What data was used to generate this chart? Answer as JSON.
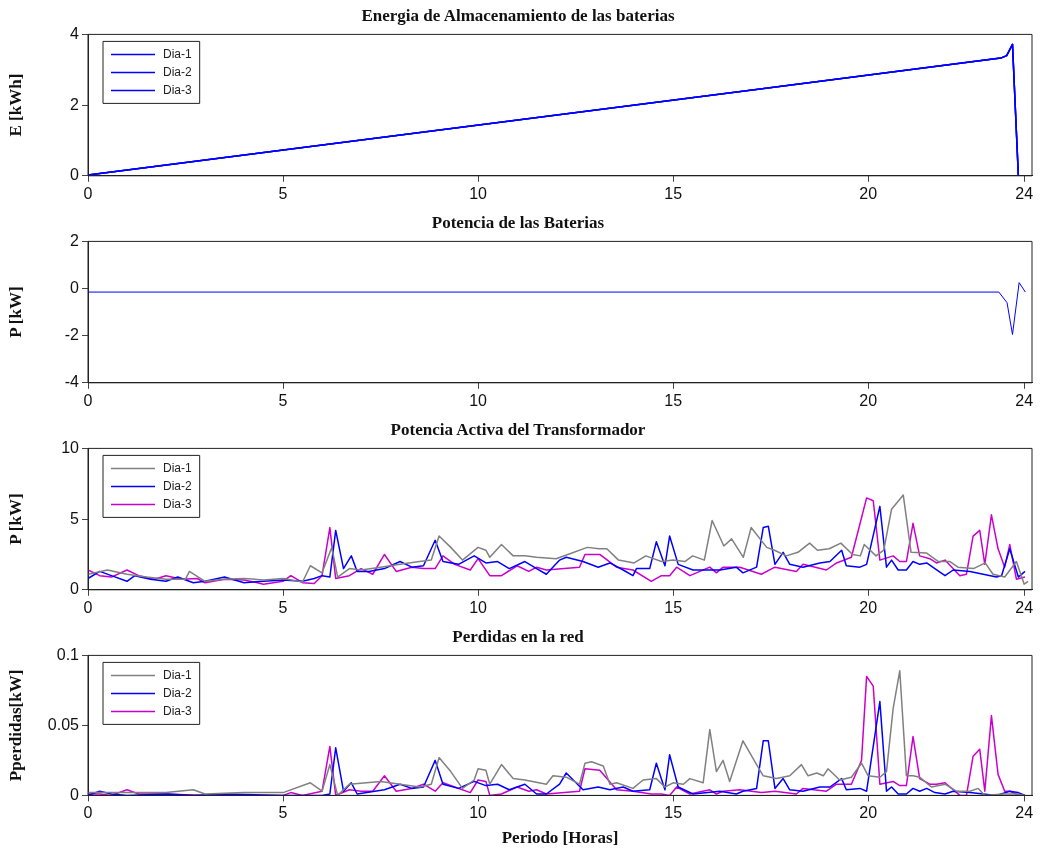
{
  "chart_data": [
    {
      "type": "line",
      "title": "Energia de Almacenamiento de las baterias",
      "ylabel": "E [kWh]",
      "xlim": [
        0,
        24.2
      ],
      "xticks": [
        0,
        5,
        10,
        15,
        20,
        24
      ],
      "ylim": [
        0,
        4
      ],
      "yticks": [
        0,
        2,
        4
      ],
      "legend": "top left",
      "series": [
        {
          "name": "Dia-1",
          "color": "#0000ff",
          "x": [
            0,
            23.4,
            23.55,
            23.7,
            23.85
          ],
          "values": [
            0.02,
            3.33,
            3.4,
            3.72,
            0
          ]
        },
        {
          "name": "Dia-2",
          "color": "#0000ff",
          "x": [
            0,
            23.4,
            23.55,
            23.7,
            23.85
          ],
          "values": [
            0.02,
            3.33,
            3.4,
            3.72,
            0
          ]
        },
        {
          "name": "Dia-3",
          "color": "#0000ff",
          "x": [
            0,
            23.4,
            23.55,
            23.7,
            23.85
          ],
          "values": [
            0.02,
            3.33,
            3.4,
            3.72,
            0
          ]
        }
      ]
    },
    {
      "type": "line",
      "title": "Potencia de las Baterias",
      "ylabel": "P [kW]",
      "xlim": [
        0,
        24.2
      ],
      "xticks": [
        0,
        5,
        10,
        15,
        20,
        24
      ],
      "ylim": [
        -4,
        2
      ],
      "yticks": [
        -4,
        -2,
        0,
        2
      ],
      "series": [
        {
          "color": "#0000ff",
          "x": [
            0,
            23.35,
            23.56,
            23.7,
            23.87,
            24.03
          ],
          "values": [
            -0.15,
            -0.15,
            -0.6,
            -1.95,
            0.25,
            -0.15
          ]
        }
      ]
    },
    {
      "type": "line",
      "title": "Potencia Activa del Transformador",
      "ylabel": "P [kW]",
      "xlim": [
        0,
        24.2
      ],
      "xticks": [
        0,
        5,
        10,
        15,
        20,
        24
      ],
      "ylim": [
        0,
        10
      ],
      "yticks": [
        0,
        5,
        10
      ],
      "legend": "top left",
      "series": [
        {
          "name": "Dia-1",
          "color": "#808080",
          "x": [
            0,
            0.5,
            1,
            1.5,
            2,
            2.5,
            2.6,
            3,
            3.5,
            4,
            4.5,
            5,
            5.5,
            5.7,
            6,
            6.25,
            6.4,
            6.7,
            7,
            7.5,
            8,
            8.5,
            8.8,
            9,
            9.3,
            9.6,
            10,
            10.2,
            10.3,
            10.6,
            10.9,
            11.2,
            11.5,
            12,
            12.3,
            12.8,
            13.1,
            13.3,
            13.6,
            14,
            14.3,
            14.7,
            15,
            15.3,
            15.5,
            15.8,
            16,
            16.3,
            16.5,
            16.8,
            17,
            17.4,
            17.6,
            17.9,
            18.2,
            18.5,
            18.7,
            19,
            19.3,
            19.6,
            19.8,
            19.9,
            20.2,
            20.4,
            20.6,
            20.9,
            21.1,
            21.5,
            21.8,
            22.1,
            22.3,
            22.7,
            23,
            23.2,
            23.5,
            23.8,
            24,
            24.1
          ],
          "values": [
            1.1,
            1.4,
            1.1,
            0.9,
            0.75,
            0.75,
            1.3,
            0.6,
            0.75,
            0.8,
            0.7,
            0.8,
            0.55,
            1.7,
            1.2,
            3.0,
            0.9,
            1.5,
            1.4,
            1.6,
            1.8,
            2.0,
            2.1,
            3.8,
            3.0,
            2.1,
            3.0,
            2.8,
            2.3,
            3.2,
            2.4,
            2.4,
            2.3,
            2.2,
            2.5,
            3.0,
            2.9,
            2.9,
            2.1,
            1.9,
            2.4,
            2.0,
            2.1,
            2.0,
            2.4,
            2.1,
            4.9,
            3.1,
            3.6,
            2.3,
            4.4,
            3.0,
            2.8,
            2.4,
            2.65,
            3.3,
            2.8,
            2.9,
            3.3,
            2.5,
            2.4,
            3.2,
            2.4,
            2.8,
            5.7,
            6.7,
            2.65,
            2.6,
            2.0,
            2.0,
            1.6,
            1.5,
            1.9,
            1.1,
            0.9,
            2.0,
            0.4,
            0.6
          ]
        },
        {
          "name": "Dia-2",
          "color": "#0000ff",
          "x": [
            0,
            0.3,
            0.6,
            1,
            1.2,
            1.6,
            2,
            2.3,
            2.7,
            3,
            3.5,
            4,
            4.5,
            5,
            5.5,
            5.8,
            6.0,
            6.2,
            6.35,
            6.55,
            6.75,
            6.9,
            7.2,
            7.6,
            8,
            8.3,
            8.6,
            8.9,
            9.1,
            9.5,
            9.9,
            10.2,
            10.5,
            10.8,
            11.2,
            11.5,
            11.75,
            12.09,
            12.26,
            12.69,
            13.08,
            13.38,
            13.72,
            13.97,
            14.06,
            14.4,
            14.57,
            14.79,
            14.91,
            15.13,
            15.51,
            16.2,
            16.62,
            16.79,
            17.14,
            17.31,
            17.44,
            17.61,
            17.82,
            17.99,
            18.33,
            18.76,
            19.02,
            19.32,
            19.44,
            19.79,
            19.96,
            20.3,
            20.47,
            20.6,
            20.77,
            20.98,
            21.15,
            21.32,
            21.5,
            21.71,
            21.97,
            22.18,
            22.61,
            22.95,
            23.29,
            23.42,
            23.63,
            23.85,
            24.02
          ],
          "values": [
            0.8,
            1.3,
            1.0,
            0.6,
            1.0,
            0.75,
            0.6,
            0.9,
            0.5,
            0.6,
            0.9,
            0.5,
            0.6,
            0.7,
            0.6,
            0.8,
            1.0,
            0.9,
            4.2,
            1.5,
            2.4,
            1.3,
            1.3,
            1.5,
            2.0,
            1.6,
            1.7,
            3.5,
            2.0,
            1.8,
            2.4,
            1.9,
            2.0,
            1.5,
            2.0,
            1.5,
            1.1,
            2.1,
            2.3,
            2.0,
            1.6,
            1.9,
            1.4,
            1.0,
            1.5,
            1.5,
            3.4,
            1.7,
            3.8,
            1.8,
            1.4,
            1.4,
            1.6,
            1.2,
            1.6,
            4.4,
            4.5,
            1.8,
            2.65,
            1.8,
            1.6,
            1.9,
            2.0,
            2.8,
            1.7,
            1.6,
            1.8,
            5.9,
            1.6,
            2.1,
            1.4,
            1.4,
            2.0,
            1.8,
            1.9,
            1.5,
            1.0,
            1.4,
            1.3,
            1.1,
            0.9,
            1.0,
            2.9,
            0.9,
            1.3
          ]
        },
        {
          "name": "Dia-3",
          "color": "#cc00cc",
          "x": [
            0,
            0.3,
            0.6,
            1,
            1.3,
            1.7,
            2,
            2.4,
            2.8,
            3,
            3.5,
            4,
            4.5,
            5,
            5.2,
            5.5,
            5.8,
            6.0,
            6.2,
            6.35,
            6.7,
            7,
            7.3,
            7.6,
            7.9,
            8.3,
            8.6,
            8.9,
            9.1,
            9.4,
            9.8,
            10,
            10.3,
            10.6,
            11,
            11.3,
            11.5,
            11.75,
            12.6,
            12.74,
            13.12,
            13.55,
            13.97,
            14.44,
            14.7,
            14.91,
            15.09,
            15.43,
            15.94,
            16.11,
            16.28,
            16.71,
            17.26,
            17.61,
            18.16,
            18.33,
            18.93,
            19.19,
            19.57,
            19.96,
            20.13,
            20.3,
            20.64,
            20.81,
            20.98,
            21.15,
            21.32,
            21.58,
            21.75,
            21.97,
            22.35,
            22.52,
            22.69,
            22.86,
            22.99,
            23.16,
            23.33,
            23.5,
            23.63,
            23.8,
            24.02
          ],
          "values": [
            1.4,
            1.0,
            0.9,
            1.4,
            1.0,
            0.75,
            1.0,
            0.75,
            0.8,
            0.5,
            0.75,
            0.7,
            0.4,
            0.6,
            1.0,
            0.5,
            0.45,
            1.0,
            4.4,
            0.8,
            1.0,
            1.5,
            1.1,
            2.5,
            1.3,
            1.6,
            1.5,
            1.5,
            2.4,
            1.8,
            1.4,
            2.2,
            1.0,
            1.0,
            1.7,
            1.3,
            1.6,
            1.4,
            1.6,
            2.5,
            2.5,
            1.6,
            1.4,
            0.6,
            1.0,
            1.0,
            1.6,
            1.0,
            1.6,
            1.2,
            1.6,
            1.6,
            1.1,
            1.6,
            1.3,
            1.8,
            1.4,
            1.9,
            2.3,
            6.5,
            6.3,
            2.1,
            2.4,
            2.0,
            2.0,
            4.7,
            2.4,
            2.2,
            1.9,
            2.1,
            1.0,
            1.1,
            3.8,
            4.2,
            1.8,
            5.3,
            2.9,
            1.6,
            3.2,
            0.75,
            0.9
          ]
        }
      ]
    },
    {
      "type": "line",
      "title": "Perdidas en la red",
      "xlabel": "Periodo [Horas]",
      "ylabel": "Pperdidas[kW]",
      "xlim": [
        0,
        24.2
      ],
      "xticks": [
        0,
        5,
        10,
        15,
        20,
        24
      ],
      "ylim": [
        0,
        0.1
      ],
      "yticks": [
        0,
        0.05,
        0.1
      ],
      "legend": "top left",
      "series": [
        {
          "name": "Dia-1",
          "color": "#808080",
          "x": [
            0,
            1,
            2,
            2.7,
            3,
            4,
            5,
            5.7,
            6.0,
            6.2,
            6.4,
            6.7,
            7.5,
            8.5,
            8.8,
            9.0,
            9.3,
            9.6,
            9.9,
            10.0,
            10.2,
            10.3,
            10.6,
            10.9,
            11.2,
            11.75,
            11.92,
            12.26,
            12.6,
            12.74,
            12.91,
            13.21,
            13.38,
            13.55,
            13.97,
            14.23,
            14.57,
            14.79,
            15.0,
            15.26,
            15.43,
            15.77,
            15.94,
            16.11,
            16.28,
            16.45,
            16.79,
            17.14,
            17.31,
            17.65,
            17.99,
            18.29,
            18.46,
            18.68,
            18.85,
            18.97,
            19.27,
            19.57,
            19.83,
            20.0,
            20.3,
            20.47,
            20.64,
            20.81,
            20.98,
            21.15,
            21.32,
            21.62,
            21.97,
            22.26,
            22.61,
            22.82,
            22.99,
            23.46,
            23.8,
            24.02
          ],
          "values": [
            0.002,
            0.002,
            0.002,
            0.004,
            0.001,
            0.002,
            0.002,
            0.009,
            0.003,
            0.022,
            0,
            0.008,
            0.01,
            0.006,
            0.008,
            0.027,
            0.017,
            0.005,
            0.011,
            0.019,
            0.018,
            0.008,
            0.022,
            0.012,
            0.011,
            0.008,
            0.014,
            0.013,
            0.008,
            0.023,
            0.024,
            0.021,
            0.008,
            0.009,
            0.005,
            0.011,
            0.012,
            0.006,
            0.009,
            0.008,
            0.012,
            0.009,
            0.047,
            0.017,
            0.025,
            0.01,
            0.039,
            0.022,
            0.014,
            0.012,
            0.014,
            0.022,
            0.014,
            0.016,
            0.014,
            0.019,
            0.011,
            0.013,
            0.023,
            0.014,
            0.013,
            0.017,
            0.062,
            0.089,
            0.014,
            0.014,
            0.013,
            0.006,
            0.008,
            0.003,
            0.003,
            0.005,
            0,
            0.001,
            0.001,
            0
          ]
        },
        {
          "name": "Dia-2",
          "color": "#0000ff",
          "x": [
            0,
            0.3,
            0.6,
            1,
            2,
            2.7,
            3.5,
            5,
            6.0,
            6.2,
            6.35,
            6.55,
            6.75,
            6.9,
            7.6,
            8,
            8.3,
            8.6,
            8.9,
            9.1,
            9.5,
            9.9,
            10.2,
            10.5,
            10.8,
            11.2,
            11.5,
            11.75,
            12.09,
            12.26,
            12.69,
            13.08,
            13.38,
            13.72,
            13.97,
            14.4,
            14.57,
            14.79,
            14.91,
            15.13,
            15.51,
            16.2,
            16.62,
            16.79,
            17.14,
            17.31,
            17.44,
            17.61,
            17.82,
            17.99,
            18.33,
            18.76,
            19.02,
            19.32,
            19.44,
            19.79,
            19.96,
            20.3,
            20.47,
            20.6,
            20.77,
            20.98,
            21.15,
            21.32,
            21.5,
            21.71,
            21.97,
            22.18,
            22.61,
            22.95,
            23.29,
            23.63,
            23.85,
            24.02
          ],
          "values": [
            0,
            0.003,
            0.001,
            0,
            0.001,
            0,
            0.001,
            0,
            0,
            0.001,
            0.034,
            0.003,
            0.009,
            0.001,
            0.004,
            0.008,
            0.005,
            0.006,
            0.025,
            0.008,
            0.005,
            0.01,
            0.007,
            0.008,
            0.004,
            0.008,
            0.001,
            0.001,
            0.008,
            0.016,
            0.004,
            0.006,
            0.004,
            0.006,
            0.003,
            0.004,
            0.023,
            0.004,
            0.029,
            0.006,
            0.001,
            0.003,
            0.001,
            0.003,
            0.005,
            0.039,
            0.039,
            0.005,
            0.012,
            0.004,
            0.003,
            0.006,
            0.006,
            0.012,
            0.004,
            0.005,
            0.003,
            0.067,
            0.003,
            0.006,
            0.001,
            0.001,
            0.005,
            0.003,
            0.005,
            0.002,
            0.001,
            0.003,
            0.002,
            0.001,
            0,
            0.003,
            0.002,
            0
          ]
        },
        {
          "name": "Dia-3",
          "color": "#cc00cc",
          "x": [
            0,
            0.3,
            0.6,
            1,
            1.3,
            2,
            3,
            5,
            5.2,
            5.5,
            6.0,
            6.2,
            6.35,
            6.7,
            7,
            7.3,
            7.6,
            7.9,
            8.3,
            8.6,
            8.9,
            9.1,
            9.4,
            9.8,
            10,
            10.2,
            10.3,
            10.6,
            11,
            11.3,
            11.5,
            11.75,
            12.6,
            12.74,
            13.12,
            13.55,
            13.97,
            14.44,
            14.7,
            14.91,
            15.09,
            15.43,
            15.94,
            16.11,
            16.28,
            16.71,
            17.26,
            17.61,
            18.16,
            18.33,
            18.93,
            19.19,
            19.57,
            19.83,
            19.96,
            20.13,
            20.3,
            20.64,
            20.81,
            20.98,
            21.15,
            21.32,
            21.58,
            21.75,
            21.97,
            22.35,
            22.52,
            22.69,
            22.86,
            22.99,
            23.16,
            23.33,
            23.5,
            23.63,
            23.8,
            24.02
          ],
          "values": [
            0.001,
            0.001,
            0,
            0.004,
            0.001,
            0.001,
            0,
            0,
            0.002,
            0,
            0.003,
            0.035,
            0,
            0.004,
            0.003,
            0.003,
            0.014,
            0.003,
            0.005,
            0.008,
            0.003,
            0.009,
            0.006,
            0.002,
            0.011,
            0.01,
            0,
            0.001,
            0.006,
            0.003,
            0.004,
            0.001,
            0.003,
            0.019,
            0.018,
            0.004,
            0.003,
            0.001,
            0.001,
            0,
            0.006,
            0.001,
            0.004,
            0.001,
            0.003,
            0.004,
            0.002,
            0.003,
            0.001,
            0.005,
            0.003,
            0.008,
            0.008,
            0.025,
            0.085,
            0.078,
            0.008,
            0.01,
            0.007,
            0.007,
            0.042,
            0.012,
            0.008,
            0.008,
            0.009,
            0,
            0,
            0.028,
            0.033,
            0.003,
            0.057,
            0.015,
            0.003,
            0.003,
            0.001,
            0
          ]
        }
      ]
    }
  ]
}
